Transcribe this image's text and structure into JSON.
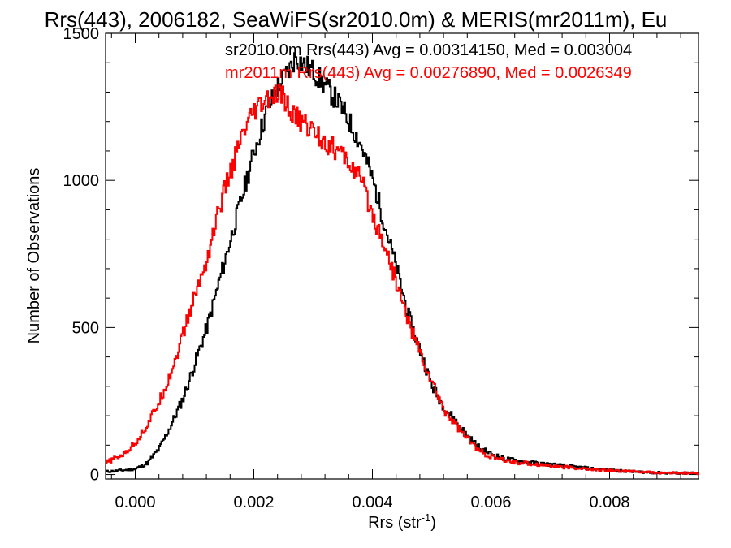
{
  "chart_data": {
    "type": "line",
    "title": "Rrs(443), 2006182, SeaWiFS(sr2010.0m) & MERIS(mr2011m), Eu",
    "xlabel": "Rrs (str",
    "xlabel_sup": "-1",
    "xlabel_close": ")",
    "ylabel": "Number of Observations",
    "xlim": [
      -0.0005,
      0.0095
    ],
    "ylim": [
      -15,
      1500
    ],
    "x_ticks": [
      0.0,
      0.002,
      0.004,
      0.006,
      0.008
    ],
    "x_tick_labels": [
      "0.000",
      "0.002",
      "0.004",
      "0.006",
      "0.008"
    ],
    "y_ticks": [
      0,
      500,
      1000,
      1500
    ],
    "y_tick_labels": [
      "0",
      "500",
      "1000",
      "1500"
    ],
    "annotations": [
      "sr2010.0m Rrs(443) Avg = 0.00314150, Med = 0.003004",
      "mr2011m Rrs(443) Avg = 0.00276890, Med = 0.0026349"
    ],
    "series": [
      {
        "color": "#000000",
        "x": [
          -0.0005,
          -0.0002,
          0.0,
          0.0002,
          0.0004,
          0.0006,
          0.0008,
          0.001,
          0.0012,
          0.0014,
          0.0016,
          0.0018,
          0.002,
          0.0022,
          0.0024,
          0.0026,
          0.0027,
          0.0028,
          0.003,
          0.0032,
          0.0034,
          0.0036,
          0.0038,
          0.004,
          0.0042,
          0.0044,
          0.0046,
          0.0048,
          0.005,
          0.0052,
          0.0054,
          0.0056,
          0.0058,
          0.006,
          0.0062,
          0.0064,
          0.0066,
          0.0068,
          0.007,
          0.0072,
          0.0074,
          0.0076,
          0.0078,
          0.008,
          0.0082,
          0.0084,
          0.0086,
          0.0088,
          0.009,
          0.0092,
          0.0095
        ],
        "y": [
          10,
          15,
          20,
          40,
          90,
          170,
          260,
          380,
          500,
          650,
          800,
          950,
          1100,
          1230,
          1320,
          1380,
          1420,
          1400,
          1370,
          1320,
          1270,
          1200,
          1120,
          1000,
          850,
          700,
          540,
          420,
          300,
          230,
          180,
          130,
          90,
          70,
          55,
          48,
          42,
          38,
          34,
          30,
          26,
          22,
          18,
          16,
          12,
          10,
          8,
          6,
          5,
          5,
          4
        ]
      },
      {
        "color": "#ff0000",
        "x": [
          -0.0005,
          -0.0002,
          0.0,
          0.0002,
          0.0004,
          0.0006,
          0.0008,
          0.001,
          0.0012,
          0.0014,
          0.0016,
          0.0018,
          0.002,
          0.0022,
          0.0024,
          0.0025,
          0.0026,
          0.0028,
          0.003,
          0.0032,
          0.0034,
          0.0036,
          0.0038,
          0.004,
          0.0042,
          0.0044,
          0.0046,
          0.0048,
          0.005,
          0.0052,
          0.0054,
          0.0056,
          0.0058,
          0.006,
          0.0062,
          0.0064,
          0.0066,
          0.0068,
          0.007,
          0.0072,
          0.0074,
          0.0076,
          0.0078,
          0.008,
          0.0082,
          0.0084,
          0.0086,
          0.0088,
          0.009,
          0.0092,
          0.0095
        ],
        "y": [
          40,
          70,
          110,
          170,
          250,
          350,
          480,
          610,
          730,
          900,
          1030,
          1150,
          1230,
          1270,
          1290,
          1280,
          1230,
          1200,
          1170,
          1130,
          1100,
          1060,
          1000,
          880,
          780,
          650,
          520,
          410,
          310,
          220,
          170,
          120,
          80,
          60,
          48,
          42,
          38,
          34,
          30,
          26,
          22,
          19,
          16,
          14,
          12,
          10,
          8,
          6,
          5,
          5,
          4
        ]
      }
    ]
  }
}
